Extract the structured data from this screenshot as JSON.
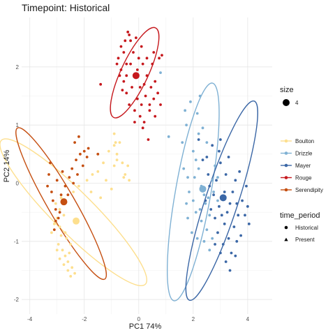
{
  "chart_data": {
    "type": "scatter",
    "title": "Timepoint: Historical",
    "xlabel": "PC1 74%",
    "ylabel": "PC2 14%",
    "xlim": [
      -4.3,
      4.9
    ],
    "ylim": [
      -2.25,
      2.85
    ],
    "x_ticks": [
      -4,
      -2,
      0,
      2,
      4
    ],
    "y_ticks": [
      -2,
      -1,
      0,
      1,
      2
    ],
    "grid": true,
    "legend_position": "right",
    "legends": {
      "size": {
        "title": "size",
        "entries": [
          {
            "label": "4"
          }
        ]
      },
      "colour": {
        "entries": [
          {
            "label": "Boulton",
            "color": "#fddf8e"
          },
          {
            "label": "Drizzle",
            "color": "#7fb1d4"
          },
          {
            "label": "Mayer",
            "color": "#3b67a6"
          },
          {
            "label": "Rouge",
            "color": "#c6181d"
          },
          {
            "label": "Serendipity",
            "color": "#c54f11"
          }
        ]
      },
      "shape": {
        "title": "time_period",
        "entries": [
          {
            "label": "Historical",
            "shape": "circle"
          },
          {
            "label": "Present",
            "shape": "triangle"
          }
        ]
      }
    },
    "series": [
      {
        "name": "Boulton",
        "color": "#fddf8e",
        "centroid": [
          -2.3,
          -0.65
        ],
        "ellipse": {
          "cx": -2.4,
          "cy": -0.5,
          "rx": 0.75,
          "ry": 1.75,
          "angle_deg": -45
        },
        "points": [
          [
            -3.2,
            -0.85
          ],
          [
            -3.1,
            -0.7
          ],
          [
            -3.0,
            -0.6
          ],
          [
            -2.9,
            -0.75
          ],
          [
            -2.85,
            -0.9
          ],
          [
            -2.95,
            -1.05
          ],
          [
            -2.8,
            -1.15
          ],
          [
            -2.7,
            -1.25
          ],
          [
            -2.6,
            -1.35
          ],
          [
            -2.55,
            -1.2
          ],
          [
            -2.5,
            -1.05
          ],
          [
            -2.65,
            -0.95
          ],
          [
            -2.75,
            -0.55
          ],
          [
            -2.9,
            -0.45
          ],
          [
            -3.05,
            -0.35
          ],
          [
            -2.45,
            -1.45
          ],
          [
            -2.35,
            -1.55
          ],
          [
            -2.5,
            -1.6
          ],
          [
            -2.6,
            -1.5
          ],
          [
            -2.75,
            -1.4
          ],
          [
            -2.9,
            -1.3
          ],
          [
            -3.0,
            -1.15
          ],
          [
            -2.7,
            -0.85
          ],
          [
            -2.85,
            -0.25
          ],
          [
            -2.4,
            -0.15
          ],
          [
            -2.2,
            -0.05
          ],
          [
            -1.9,
            0.05
          ],
          [
            -1.7,
            0.15
          ],
          [
            -1.5,
            0.2
          ],
          [
            -1.3,
            0.35
          ],
          [
            -1.1,
            0.55
          ],
          [
            -0.9,
            0.65
          ],
          [
            -0.8,
            0.5
          ],
          [
            -0.6,
            0.35
          ],
          [
            -0.5,
            0.15
          ],
          [
            -0.35,
            0.05
          ],
          [
            -0.55,
            0.1
          ],
          [
            -0.7,
            0.7
          ],
          [
            -0.8,
            0.4
          ],
          [
            -0.4,
            0.3
          ],
          [
            -0.9,
            0.3
          ],
          [
            -0.9,
            0.85
          ],
          [
            -0.85,
            0.7
          ],
          [
            -1.0,
            -0.1
          ],
          [
            -1.2,
            0.05
          ],
          [
            -1.75,
            -0.15
          ],
          [
            -1.4,
            -0.25
          ]
        ]
      },
      {
        "name": "Drizzle",
        "color": "#7fb1d4",
        "centroid": [
          2.35,
          -0.1
        ],
        "ellipse": {
          "cx": 2.0,
          "cy": -0.15,
          "rx": 0.65,
          "ry": 1.9,
          "angle_deg": 10
        },
        "points": [
          [
            1.1,
            0.8
          ],
          [
            1.9,
            1.4
          ],
          [
            1.7,
            1.25
          ],
          [
            1.75,
            1.0
          ],
          [
            1.6,
            0.7
          ],
          [
            2.0,
            0.55
          ],
          [
            2.1,
            0.4
          ],
          [
            2.2,
            0.25
          ],
          [
            1.8,
            0.1
          ],
          [
            2.05,
            0.1
          ],
          [
            2.3,
            -0.05
          ],
          [
            2.4,
            -0.2
          ],
          [
            2.45,
            -0.35
          ],
          [
            2.25,
            -0.45
          ],
          [
            2.1,
            -0.5
          ],
          [
            2.0,
            -0.3
          ],
          [
            1.85,
            -0.15
          ],
          [
            1.75,
            -0.35
          ],
          [
            2.3,
            -0.65
          ],
          [
            2.5,
            -0.8
          ],
          [
            2.6,
            -0.55
          ],
          [
            2.7,
            -0.95
          ],
          [
            2.55,
            -0.25
          ],
          [
            2.7,
            0.05
          ],
          [
            2.8,
            0.3
          ],
          [
            2.5,
            0.7
          ],
          [
            2.35,
            0.95
          ],
          [
            2.15,
            1.2
          ],
          [
            2.9,
            -0.3
          ],
          [
            2.4,
            -1.0
          ],
          [
            2.6,
            -1.15
          ],
          [
            1.65,
            0.25
          ],
          [
            2.2,
            0.85
          ],
          [
            2.15,
            -0.95
          ],
          [
            1.95,
            -0.85
          ],
          [
            2.25,
            1.5
          ],
          [
            2.75,
            -0.15
          ],
          [
            1.8,
            -0.6
          ],
          [
            2.9,
            0.1
          ],
          [
            0.8,
            1.9
          ]
        ]
      },
      {
        "name": "Mayer",
        "color": "#3b67a6",
        "centroid": [
          3.1,
          -0.25
        ],
        "ellipse": {
          "cx": 3.05,
          "cy": -0.3,
          "rx": 0.6,
          "ry": 1.8,
          "angle_deg": 18
        },
        "points": [
          [
            2.2,
            0.75
          ],
          [
            2.35,
            0.4
          ],
          [
            2.5,
            0.45
          ],
          [
            2.55,
            0.15
          ],
          [
            2.6,
            -0.05
          ],
          [
            2.75,
            -0.2
          ],
          [
            2.85,
            0.05
          ],
          [
            2.95,
            -0.4
          ],
          [
            3.05,
            -0.55
          ],
          [
            3.15,
            -0.7
          ],
          [
            3.25,
            -0.5
          ],
          [
            3.35,
            -0.35
          ],
          [
            3.45,
            -0.15
          ],
          [
            3.55,
            0.05
          ],
          [
            3.0,
            0.35
          ],
          [
            2.7,
            0.65
          ],
          [
            2.9,
            -0.85
          ],
          [
            3.1,
            -1.05
          ],
          [
            3.3,
            -0.95
          ],
          [
            3.5,
            -0.75
          ],
          [
            3.65,
            -0.55
          ],
          [
            3.8,
            -0.3
          ],
          [
            3.4,
            -1.2
          ],
          [
            3.2,
            -1.35
          ],
          [
            3.0,
            -1.2
          ],
          [
            2.8,
            -1.05
          ],
          [
            3.6,
            -1.0
          ],
          [
            3.75,
            -0.9
          ],
          [
            3.9,
            -0.55
          ],
          [
            3.95,
            -0.05
          ],
          [
            3.7,
            0.2
          ],
          [
            3.3,
            0.45
          ],
          [
            2.65,
            -0.45
          ],
          [
            3.2,
            0.15
          ],
          [
            3.55,
            -1.25
          ],
          [
            3.35,
            -1.5
          ],
          [
            2.45,
            -0.3
          ],
          [
            2.95,
            0.55
          ],
          [
            4.0,
            -0.4
          ],
          [
            3.0,
            0.75
          ],
          [
            4.05,
            -0.7
          ],
          [
            3.15,
            -0.15
          ],
          [
            2.8,
            -0.6
          ],
          [
            3.6,
            -0.35
          ]
        ]
      },
      {
        "name": "Rouge",
        "color": "#c6181d",
        "centroid": [
          -0.1,
          1.85
        ],
        "ellipse": {
          "cx": -0.15,
          "cy": 1.9,
          "rx": 0.5,
          "ry": 0.85,
          "angle_deg": 25
        },
        "points": [
          [
            -0.4,
            2.6
          ],
          [
            -0.55,
            2.25
          ],
          [
            -0.75,
            2.15
          ],
          [
            -0.65,
            1.95
          ],
          [
            -0.55,
            1.75
          ],
          [
            -0.45,
            1.55
          ],
          [
            -0.35,
            1.35
          ],
          [
            -0.15,
            1.25
          ],
          [
            0.05,
            1.15
          ],
          [
            0.2,
            1.05
          ],
          [
            0.4,
            1.25
          ],
          [
            0.55,
            1.45
          ],
          [
            0.45,
            1.65
          ],
          [
            0.3,
            1.85
          ],
          [
            0.15,
            2.05
          ],
          [
            0.0,
            2.15
          ],
          [
            -0.2,
            2.25
          ],
          [
            -0.3,
            2.05
          ],
          [
            -0.15,
            1.85
          ],
          [
            0.05,
            1.65
          ],
          [
            0.25,
            1.5
          ],
          [
            -0.05,
            1.45
          ],
          [
            -0.25,
            1.65
          ],
          [
            -0.45,
            1.85
          ],
          [
            -0.65,
            2.35
          ],
          [
            -0.8,
            2.05
          ],
          [
            -0.7,
            1.85
          ],
          [
            -0.5,
            2.45
          ],
          [
            -0.3,
            2.45
          ],
          [
            0.1,
            2.35
          ],
          [
            0.3,
            2.15
          ],
          [
            0.5,
            2.05
          ],
          [
            0.6,
            1.75
          ],
          [
            0.7,
            1.55
          ],
          [
            0.75,
            2.15
          ],
          [
            0.55,
            2.25
          ],
          [
            0.85,
            2.2
          ],
          [
            -1.4,
            1.7
          ],
          [
            0.15,
            0.95
          ],
          [
            -0.15,
            1.05
          ],
          [
            0.35,
            0.75
          ],
          [
            0.4,
            1.35
          ],
          [
            -0.1,
            2.5
          ],
          [
            -0.35,
            2.55
          ],
          [
            0.8,
            1.35
          ],
          [
            0.6,
            1.15
          ],
          [
            -0.6,
            1.6
          ],
          [
            -0.45,
            2.05
          ],
          [
            0.2,
            1.7
          ],
          [
            -0.05,
            1.95
          ],
          [
            0.1,
            1.35
          ]
        ]
      },
      {
        "name": "Serendipity",
        "color": "#c54f11",
        "centroid": [
          -2.75,
          -0.32
        ],
        "ellipse": {
          "cx": -2.85,
          "cy": -0.35,
          "rx": 0.5,
          "ry": 1.5,
          "angle_deg": -30
        },
        "points": [
          [
            -3.3,
            0.15
          ],
          [
            -3.2,
            -0.15
          ],
          [
            -3.15,
            -0.3
          ],
          [
            -3.05,
            -0.45
          ],
          [
            -2.95,
            -0.6
          ],
          [
            -3.1,
            -0.8
          ],
          [
            -2.85,
            -0.2
          ],
          [
            -2.7,
            -0.05
          ],
          [
            -2.55,
            0.1
          ],
          [
            -2.45,
            0.25
          ],
          [
            -2.3,
            0.4
          ],
          [
            -2.15,
            0.5
          ],
          [
            -2.0,
            0.55
          ],
          [
            -1.9,
            0.45
          ],
          [
            -2.05,
            0.3
          ],
          [
            -2.25,
            0.15
          ],
          [
            -2.4,
            0.0
          ],
          [
            -2.6,
            -0.2
          ],
          [
            -2.75,
            -0.35
          ],
          [
            -2.9,
            -0.5
          ],
          [
            -3.05,
            -0.65
          ],
          [
            -3.25,
            0.35
          ],
          [
            -3.0,
            0.05
          ],
          [
            -2.35,
            0.7
          ],
          [
            -1.85,
            0.6
          ],
          [
            -1.5,
            0.5
          ],
          [
            -2.2,
            0.8
          ],
          [
            -3.35,
            -0.05
          ],
          [
            -2.8,
            0.2
          ]
        ]
      }
    ]
  }
}
